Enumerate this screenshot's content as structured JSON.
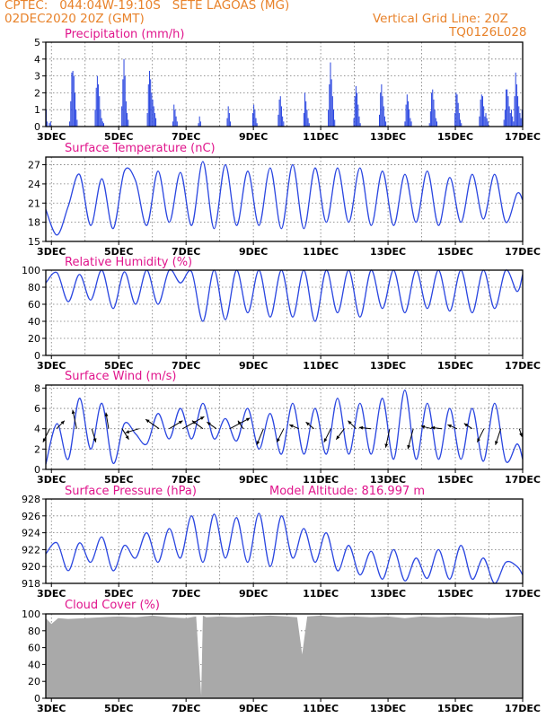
{
  "header": {
    "line1_left": "CPTEC:   044:04W-19:10S   SETE LAGOAS (MG)",
    "line2_left": "02DEC2020 20Z (GMT)",
    "line1_right": "Vertical Grid Line: 20Z",
    "line2_right": "TQ0126L028"
  },
  "colors": {
    "header": "#e8822a",
    "title": "#e0158c",
    "series": "#2a46e0",
    "bars": "#2a46e0",
    "cloud": "#a9a9a9",
    "axis": "#000000"
  },
  "x_tick_labels": [
    "3DEC",
    "5DEC",
    "7DEC",
    "9DEC",
    "11DEC",
    "13DEC",
    "15DEC",
    "17DEC"
  ],
  "chart_data": [
    {
      "id": "precip",
      "type": "bar",
      "title": "Precipitation (mm/h)",
      "ylim": [
        0,
        5
      ],
      "yticks": [
        0,
        1,
        2,
        3,
        4,
        5
      ],
      "x_range_days": [
        2.8333,
        17.0
      ],
      "values_hourly_mm": [
        1.0,
        0.3,
        0,
        0.2,
        0.3,
        0,
        0,
        0,
        0,
        0,
        0,
        0,
        0,
        0,
        0,
        0,
        0,
        0,
        0,
        0,
        0,
        0,
        0.3,
        1.5,
        3.2,
        3.3,
        3.0,
        2.0,
        1.0,
        0.4,
        0,
        0,
        0,
        0,
        0,
        0,
        0,
        0,
        0,
        0,
        0,
        0,
        0,
        0,
        0,
        0,
        1.0,
        2.3,
        3.0,
        2.5,
        1.8,
        1.0,
        0.5,
        0.3,
        0.2,
        0,
        0,
        0,
        0,
        0,
        0,
        0,
        0,
        0,
        0,
        0,
        0,
        0,
        0,
        0,
        0,
        1.2,
        2.8,
        4.0,
        3.0,
        1.5,
        0.8,
        0.4,
        0,
        0,
        0,
        0,
        0,
        0,
        0,
        0,
        0,
        0,
        0,
        0,
        0,
        0,
        0,
        0,
        0,
        0.8,
        2.5,
        3.3,
        2.8,
        2.0,
        1.6,
        1.2,
        0.8,
        0.5,
        0,
        0,
        0,
        0,
        0,
        0,
        0,
        0,
        0,
        0,
        0,
        0,
        0,
        0,
        0,
        0.3,
        1.3,
        1.0,
        0.6,
        0.3,
        0,
        0,
        0,
        0,
        0,
        0,
        0,
        0,
        0,
        0,
        0,
        0,
        0,
        0,
        0,
        0,
        0,
        0,
        0,
        0.2,
        0.6,
        0.3,
        0,
        0,
        0,
        0,
        0,
        0,
        0,
        0,
        0,
        0,
        0,
        0,
        0,
        0,
        0,
        0,
        0,
        0,
        0,
        0,
        0,
        0,
        0,
        0,
        0.5,
        1.2,
        0.8,
        0.3,
        0,
        0,
        0,
        0,
        0,
        0,
        0,
        0,
        0,
        0,
        0,
        0,
        0,
        0,
        0,
        0,
        0,
        0,
        0,
        0,
        0.8,
        1.3,
        1.0,
        0.5,
        0.2,
        0,
        0,
        0,
        0,
        0,
        0,
        0,
        0,
        0,
        0,
        0,
        0,
        0,
        0,
        0,
        0,
        0,
        0,
        0,
        0.7,
        1.6,
        1.8,
        1.2,
        0.6,
        0.3,
        0,
        0,
        0,
        0,
        0,
        0,
        0,
        0,
        0,
        0,
        0,
        0,
        0,
        0,
        0,
        0,
        0,
        0,
        0.8,
        2.0,
        1.5,
        1.0,
        0.5,
        0.2,
        0,
        0,
        0,
        0,
        0,
        0,
        0,
        0,
        0,
        0,
        0,
        0,
        0,
        0,
        0,
        0,
        0,
        1.0,
        2.5,
        3.8,
        2.8,
        1.8,
        1.0,
        0.4,
        0,
        0,
        0,
        0,
        0,
        0,
        0,
        0,
        0,
        0,
        0,
        0,
        0,
        0,
        0,
        0,
        0,
        0.5,
        1.8,
        2.4,
        2.0,
        1.3,
        0.6,
        0.2,
        0,
        0,
        0,
        0,
        0,
        0,
        0,
        0,
        0,
        0,
        0,
        0,
        0,
        0,
        0,
        0,
        0,
        0.7,
        2.0,
        2.5,
        1.8,
        1.2,
        0.6,
        0.3,
        0,
        0,
        0,
        0,
        0,
        0,
        0,
        0,
        0,
        0,
        0,
        0,
        0,
        0,
        0,
        0,
        0,
        0.3,
        1.3,
        1.9,
        1.5,
        1.0,
        0.5,
        0.3,
        0,
        0,
        0,
        0,
        0,
        0,
        0,
        0,
        0,
        0,
        0,
        0,
        0,
        0,
        0,
        0,
        0.2,
        0.9,
        2.0,
        2.2,
        1.6,
        1.0,
        0.5,
        0.3,
        0,
        0,
        0,
        0,
        0,
        0,
        0,
        0,
        0,
        0,
        0,
        0,
        0,
        0,
        0,
        0,
        0.8,
        2.0,
        1.9,
        1.4,
        0.8,
        0.4,
        0.2,
        0,
        0,
        0,
        0,
        0,
        0,
        0,
        0,
        0,
        0,
        0,
        0,
        0,
        0,
        0,
        0,
        0.6,
        1.6,
        1.9,
        1.8,
        1.2,
        0.6,
        0.8,
        0.5,
        0.3,
        0,
        0,
        0,
        0,
        0,
        0,
        0,
        0,
        0,
        0,
        0,
        0,
        0,
        0,
        0.4,
        1.0,
        2.2,
        2.2,
        1.8,
        1.2,
        0.8,
        1.0,
        0.6,
        0.3,
        1.8,
        3.2,
        2.5,
        1.8,
        1.2,
        0.8,
        0.5,
        1.0
      ]
    },
    {
      "id": "temp",
      "type": "line",
      "title": "Surface Temperature (nC)",
      "ylim": [
        15,
        28.2
      ],
      "yticks": [
        15,
        18,
        21,
        24,
        27
      ],
      "x_range_days": [
        2.8333,
        17.0
      ],
      "x_days": [
        2.833,
        3.167,
        3.5,
        3.833,
        4.167,
        4.5,
        4.833,
        5.167,
        5.5,
        5.833,
        6.167,
        6.5,
        6.833,
        7.167,
        7.5,
        7.833,
        8.167,
        8.5,
        8.833,
        9.167,
        9.5,
        9.833,
        10.167,
        10.5,
        10.833,
        11.167,
        11.5,
        11.833,
        12.167,
        12.5,
        12.833,
        13.167,
        13.5,
        13.833,
        14.167,
        14.5,
        14.833,
        15.167,
        15.5,
        15.833,
        16.167,
        16.5,
        16.833,
        17.0
      ],
      "y": [
        20.0,
        16.0,
        20.5,
        25.5,
        17.5,
        24.8,
        17.0,
        26.0,
        24.5,
        17.5,
        26.0,
        18.0,
        25.8,
        17.5,
        27.5,
        17.0,
        27.0,
        17.5,
        26.0,
        17.5,
        26.5,
        17.0,
        27.0,
        17.0,
        26.5,
        18.0,
        26.5,
        18.0,
        26.5,
        17.5,
        26.0,
        17.5,
        25.5,
        18.0,
        26.0,
        17.5,
        25.0,
        18.0,
        25.5,
        18.5,
        25.5,
        18.0,
        22.5,
        21.5
      ]
    },
    {
      "id": "rh",
      "type": "line",
      "title": "Relative Humidity (%)",
      "ylim": [
        0,
        100
      ],
      "yticks": [
        0,
        20,
        40,
        60,
        80,
        100
      ],
      "x_range_days": [
        2.8333,
        17.0
      ],
      "x_days": [
        2.833,
        3.167,
        3.5,
        3.833,
        4.167,
        4.5,
        4.833,
        5.167,
        5.5,
        5.833,
        6.167,
        6.5,
        6.833,
        7.167,
        7.5,
        7.833,
        8.167,
        8.5,
        8.833,
        9.167,
        9.5,
        9.833,
        10.167,
        10.5,
        10.833,
        11.167,
        11.5,
        11.833,
        12.167,
        12.5,
        12.833,
        13.167,
        13.5,
        13.833,
        14.167,
        14.5,
        14.833,
        15.167,
        15.5,
        15.833,
        16.167,
        16.5,
        16.833,
        17.0
      ],
      "y": [
        85,
        97,
        63,
        95,
        65,
        100,
        55,
        98,
        60,
        100,
        60,
        100,
        85,
        98,
        40,
        100,
        42,
        100,
        50,
        100,
        45,
        100,
        45,
        100,
        40,
        100,
        50,
        100,
        45,
        100,
        55,
        100,
        50,
        100,
        55,
        100,
        52,
        100,
        50,
        100,
        55,
        100,
        75,
        95
      ]
    },
    {
      "id": "wind",
      "type": "line",
      "title": "Surface Wind (m/s)",
      "ylim": [
        0,
        8.3
      ],
      "yticks": [
        0,
        2,
        4,
        6,
        8
      ],
      "x_range_days": [
        2.8333,
        17.0
      ],
      "x_days": [
        2.833,
        3.167,
        3.5,
        3.833,
        4.167,
        4.5,
        4.833,
        5.167,
        5.5,
        5.833,
        6.167,
        6.5,
        6.833,
        7.167,
        7.5,
        7.833,
        8.167,
        8.5,
        8.833,
        9.167,
        9.5,
        9.833,
        10.167,
        10.5,
        10.833,
        11.167,
        11.5,
        11.833,
        12.167,
        12.5,
        12.833,
        13.167,
        13.5,
        13.833,
        14.167,
        14.5,
        14.833,
        15.167,
        15.5,
        15.833,
        16.167,
        16.5,
        16.833,
        17.0
      ],
      "y": [
        0.5,
        4.5,
        1.0,
        7.0,
        2.0,
        6.5,
        0.6,
        4.5,
        3.5,
        2.5,
        5.5,
        3.0,
        6.0,
        3.0,
        6.5,
        3.0,
        5.0,
        2.8,
        6.0,
        2.0,
        5.5,
        1.5,
        6.5,
        1.5,
        6.0,
        1.5,
        7.0,
        1.5,
        6.5,
        1.5,
        7.0,
        1.0,
        7.8,
        1.0,
        6.5,
        1.0,
        6.0,
        1.0,
        6.0,
        0.8,
        6.5,
        0.8,
        2.5,
        1.0
      ],
      "arrows_day_u_v": [
        [
          2.95,
          -0.5,
          -1.0
        ],
        [
          3.15,
          0.6,
          0.6
        ],
        [
          3.75,
          -0.3,
          1.4
        ],
        [
          4.2,
          0.3,
          -1.0
        ],
        [
          4.7,
          -0.2,
          1.2
        ],
        [
          5.1,
          0.5,
          -0.8
        ],
        [
          5.6,
          -1.0,
          -0.3
        ],
        [
          6.2,
          -1.0,
          0.7
        ],
        [
          6.5,
          1.0,
          0.6
        ],
        [
          6.9,
          1.6,
          0.9
        ],
        [
          7.5,
          -0.8,
          0.6
        ],
        [
          7.9,
          -0.7,
          0.5
        ],
        [
          8.3,
          1.5,
          0.8
        ],
        [
          8.7,
          -0.4,
          0.6
        ],
        [
          9.3,
          -0.5,
          -1.2
        ],
        [
          9.9,
          -0.5,
          -1.0
        ],
        [
          10.35,
          -0.7,
          0.3
        ],
        [
          10.8,
          -0.6,
          0.5
        ],
        [
          11.3,
          -0.5,
          -1.0
        ],
        [
          11.7,
          -0.6,
          -0.8
        ],
        [
          12.05,
          -0.6,
          0.6
        ],
        [
          12.5,
          -0.9,
          0.1
        ],
        [
          13.05,
          -0.3,
          -1.4
        ],
        [
          13.75,
          -0.4,
          -1.5
        ],
        [
          14.3,
          -0.8,
          0.2
        ],
        [
          14.6,
          -0.8,
          0.1
        ],
        [
          15.05,
          -0.7,
          0.3
        ],
        [
          15.5,
          -0.6,
          0.4
        ],
        [
          15.85,
          -0.5,
          -1.0
        ],
        [
          16.35,
          -0.4,
          -1.2
        ],
        [
          16.9,
          0.2,
          -0.6
        ]
      ]
    },
    {
      "id": "pressure",
      "type": "line",
      "title": "Surface Pressure (hPa)",
      "subtitle": "Model Altitude: 816.997 m",
      "ylim": [
        918,
        928
      ],
      "yticks": [
        918,
        920,
        922,
        924,
        926,
        928
      ],
      "x_range_days": [
        2.8333,
        17.0
      ],
      "x_days": [
        2.833,
        3.167,
        3.5,
        3.833,
        4.167,
        4.5,
        4.833,
        5.167,
        5.5,
        5.833,
        6.167,
        6.5,
        6.833,
        7.167,
        7.5,
        7.833,
        8.167,
        8.5,
        8.833,
        9.167,
        9.5,
        9.833,
        10.167,
        10.5,
        10.833,
        11.167,
        11.5,
        11.833,
        12.167,
        12.5,
        12.833,
        13.167,
        13.5,
        13.833,
        14.167,
        14.5,
        14.833,
        15.167,
        15.5,
        15.833,
        16.167,
        16.5,
        16.833,
        17.0
      ],
      "y": [
        921.5,
        922.8,
        919.5,
        922.8,
        920.5,
        923.5,
        919.5,
        922.5,
        921.0,
        924.0,
        920.5,
        924.5,
        921.0,
        926.0,
        920.5,
        926.2,
        921.0,
        925.8,
        920.5,
        926.3,
        920.0,
        926.0,
        921.0,
        924.5,
        920.5,
        924.0,
        919.5,
        922.5,
        919.0,
        921.8,
        918.5,
        922.0,
        918.3,
        921.0,
        918.6,
        922.0,
        918.5,
        922.5,
        918.5,
        921.0,
        918.0,
        920.5,
        920.0,
        919.0
      ]
    },
    {
      "id": "cloud",
      "type": "area",
      "title": "Cloud Cover (%)",
      "ylim": [
        0,
        100
      ],
      "yticks": [
        0,
        20,
        40,
        60,
        80,
        100
      ],
      "x_range_days": [
        2.8333,
        17.0
      ],
      "x_days": [
        2.833,
        3.0,
        3.2,
        3.5,
        4.0,
        4.5,
        5.0,
        5.5,
        6.0,
        6.5,
        7.0,
        7.3,
        7.45,
        7.5,
        7.6,
        8.0,
        8.5,
        9.0,
        9.5,
        10.0,
        10.3,
        10.45,
        10.6,
        11.0,
        11.5,
        12.0,
        12.5,
        13.0,
        13.5,
        14.0,
        14.5,
        15.0,
        15.5,
        16.0,
        16.5,
        17.0
      ],
      "y": [
        95,
        88,
        95,
        94,
        95,
        96,
        97,
        96,
        98,
        96,
        95,
        97,
        3,
        98,
        96,
        97,
        96,
        97,
        98,
        97,
        96,
        52,
        97,
        98,
        96,
        97,
        96,
        97,
        95,
        97,
        96,
        97,
        96,
        95,
        96,
        98
      ]
    }
  ]
}
